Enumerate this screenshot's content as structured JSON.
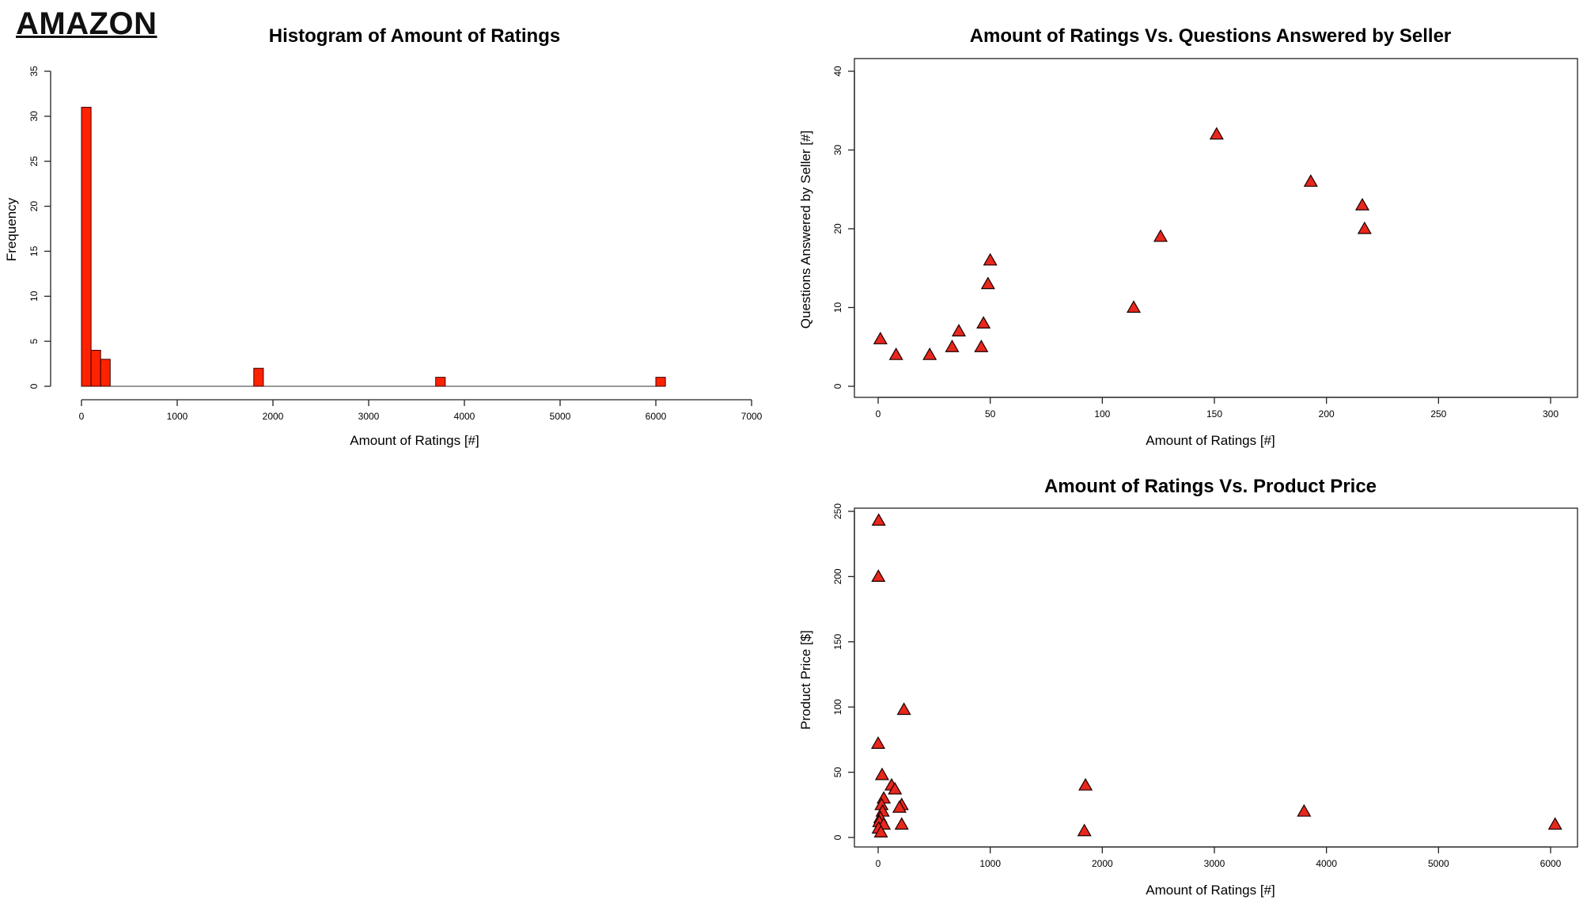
{
  "brand": "AMAZON",
  "chart_data": [
    {
      "id": "histogram",
      "type": "bar",
      "title": "Histogram of Amount of Ratings",
      "xlabel": "Amount of Ratings [#]",
      "ylabel": "Frequency",
      "xlim": [
        0,
        7000
      ],
      "ylim": [
        0,
        35
      ],
      "xticks": [
        0,
        1000,
        2000,
        3000,
        4000,
        5000,
        6000,
        7000
      ],
      "yticks": [
        0,
        5,
        10,
        15,
        20,
        25,
        30,
        35
      ],
      "bin_width": 100,
      "bins": [
        {
          "x0": 0,
          "x1": 100,
          "count": 31
        },
        {
          "x0": 100,
          "x1": 200,
          "count": 4
        },
        {
          "x0": 200,
          "x1": 300,
          "count": 3
        },
        {
          "x0": 1800,
          "x1": 1900,
          "count": 2
        },
        {
          "x0": 3700,
          "x1": 3800,
          "count": 1
        },
        {
          "x0": 6000,
          "x1": 6100,
          "count": 1
        }
      ],
      "bar_color": "#ff2200",
      "grid": false
    },
    {
      "id": "ratings-vs-questions",
      "type": "scatter",
      "title": "Amount of Ratings Vs. Questions Answered by Seller",
      "xlabel": "Amount of Ratings [#]",
      "ylabel": "Questions Answered by Seller [#]",
      "xlim": [
        0,
        300
      ],
      "ylim": [
        0,
        40
      ],
      "xticks": [
        0,
        50,
        100,
        150,
        200,
        250,
        300
      ],
      "yticks": [
        0,
        10,
        20,
        30,
        40
      ],
      "marker": "triangle",
      "marker_color": "#e8271d",
      "points": [
        {
          "x": 1,
          "y": 6
        },
        {
          "x": 8,
          "y": 4
        },
        {
          "x": 23,
          "y": 4
        },
        {
          "x": 33,
          "y": 5
        },
        {
          "x": 36,
          "y": 7
        },
        {
          "x": 46,
          "y": 5
        },
        {
          "x": 47,
          "y": 8
        },
        {
          "x": 49,
          "y": 13
        },
        {
          "x": 50,
          "y": 16
        },
        {
          "x": 114,
          "y": 10
        },
        {
          "x": 126,
          "y": 19
        },
        {
          "x": 151,
          "y": 32
        },
        {
          "x": 193,
          "y": 26
        },
        {
          "x": 216,
          "y": 23
        },
        {
          "x": 217,
          "y": 20
        }
      ],
      "grid": false
    },
    {
      "id": "ratings-vs-price",
      "type": "scatter",
      "title": "Amount of Ratings Vs. Product Price",
      "xlabel": "Amount of Ratings [#]",
      "ylabel": "Product Price [$]",
      "xlim": [
        0,
        6000
      ],
      "ylim": [
        0,
        250
      ],
      "xticks": [
        0,
        1000,
        2000,
        3000,
        4000,
        5000,
        6000
      ],
      "yticks": [
        0,
        50,
        100,
        150,
        200,
        250
      ],
      "marker": "triangle",
      "marker_color": "#e8271d",
      "points": [
        {
          "x": 5,
          "y": 243
        },
        {
          "x": 2,
          "y": 200
        },
        {
          "x": 0,
          "y": 72
        },
        {
          "x": 230,
          "y": 98
        },
        {
          "x": 35,
          "y": 48
        },
        {
          "x": 120,
          "y": 40
        },
        {
          "x": 150,
          "y": 37
        },
        {
          "x": 50,
          "y": 30
        },
        {
          "x": 210,
          "y": 25
        },
        {
          "x": 190,
          "y": 23
        },
        {
          "x": 30,
          "y": 25
        },
        {
          "x": 40,
          "y": 20
        },
        {
          "x": 20,
          "y": 15
        },
        {
          "x": 10,
          "y": 12
        },
        {
          "x": 50,
          "y": 10
        },
        {
          "x": 5,
          "y": 7
        },
        {
          "x": 25,
          "y": 4
        },
        {
          "x": 210,
          "y": 10
        },
        {
          "x": 1850,
          "y": 40
        },
        {
          "x": 1840,
          "y": 5
        },
        {
          "x": 3800,
          "y": 20
        },
        {
          "x": 6040,
          "y": 10
        }
      ],
      "grid": false
    }
  ]
}
